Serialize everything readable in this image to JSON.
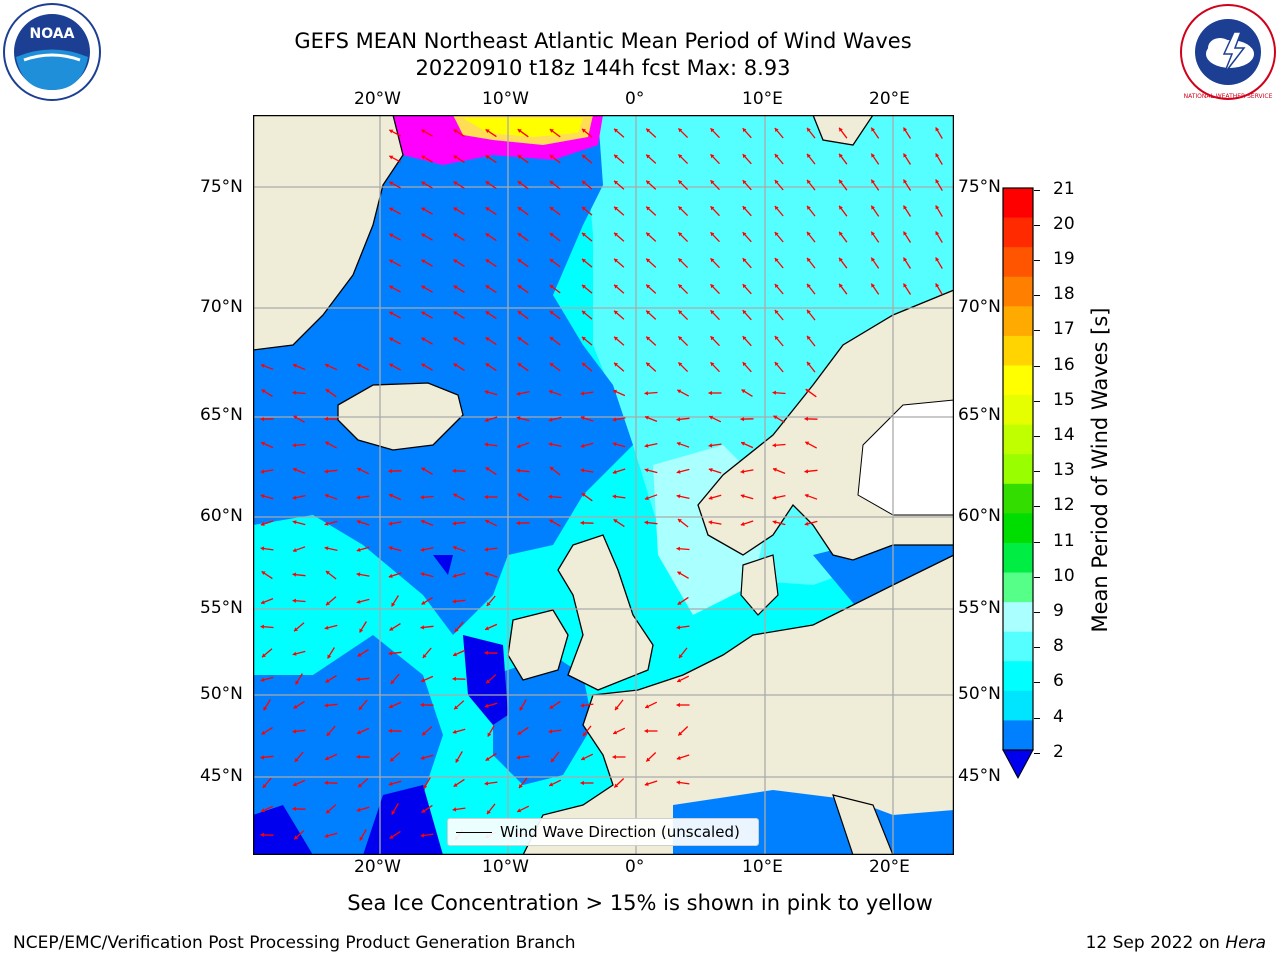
{
  "title": {
    "line1": "GEFS MEAN Northeast Atlantic Mean Period of Wind Waves",
    "line2": "20220910 t18z 144h fcst   Max: 8.93"
  },
  "axes": {
    "lon_labels": [
      "20°W",
      "10°W",
      "0°",
      "10°E",
      "20°E"
    ],
    "lat_labels": [
      "75°N",
      "70°N",
      "65°N",
      "60°N",
      "55°N",
      "50°N",
      "45°N"
    ]
  },
  "colorbar": {
    "label": "Mean Period of Wind Waves [s]",
    "ticks": [
      "21",
      "20",
      "19",
      "18",
      "17",
      "16",
      "15",
      "14",
      "13",
      "12",
      "11",
      "10",
      "9",
      "8",
      "6",
      "4",
      "2"
    ],
    "colors": [
      "#ff0000",
      "#ff2a00",
      "#ff5500",
      "#ff7f00",
      "#ffaa00",
      "#ffd400",
      "#ffff00",
      "#e5ff00",
      "#bfff00",
      "#99ff00",
      "#33dd00",
      "#00dd00",
      "#00ee44",
      "#55ff88",
      "#aaffff",
      "#55ffff",
      "#00ffff",
      "#00e5ff",
      "#0080ff"
    ],
    "extend_color": "#0000ee"
  },
  "map": {
    "land_color": "#efecd8",
    "ocean_colors": [
      "#00ffff",
      "#55ffff",
      "#aaffff",
      "#0080ff",
      "#0000ff"
    ],
    "ice_colors": [
      "#ff00ff",
      "#ff88dd",
      "#ffff00",
      "#ffdd55"
    ],
    "arrow_color": "#ff0000"
  },
  "legend": {
    "label": "Wind Wave Direction (unscaled)"
  },
  "subnote": "Sea Ice Concentration > 15% is shown in pink to yellow",
  "footer": {
    "left": "NCEP/EMC/Verification Post Processing Product Generation Branch",
    "right_prefix": "12 Sep 2022 on ",
    "right_machine": "Hera"
  },
  "logos": {
    "noaa_text": "NOAA",
    "nws_text": "NATIONAL WEATHER SERVICE"
  }
}
